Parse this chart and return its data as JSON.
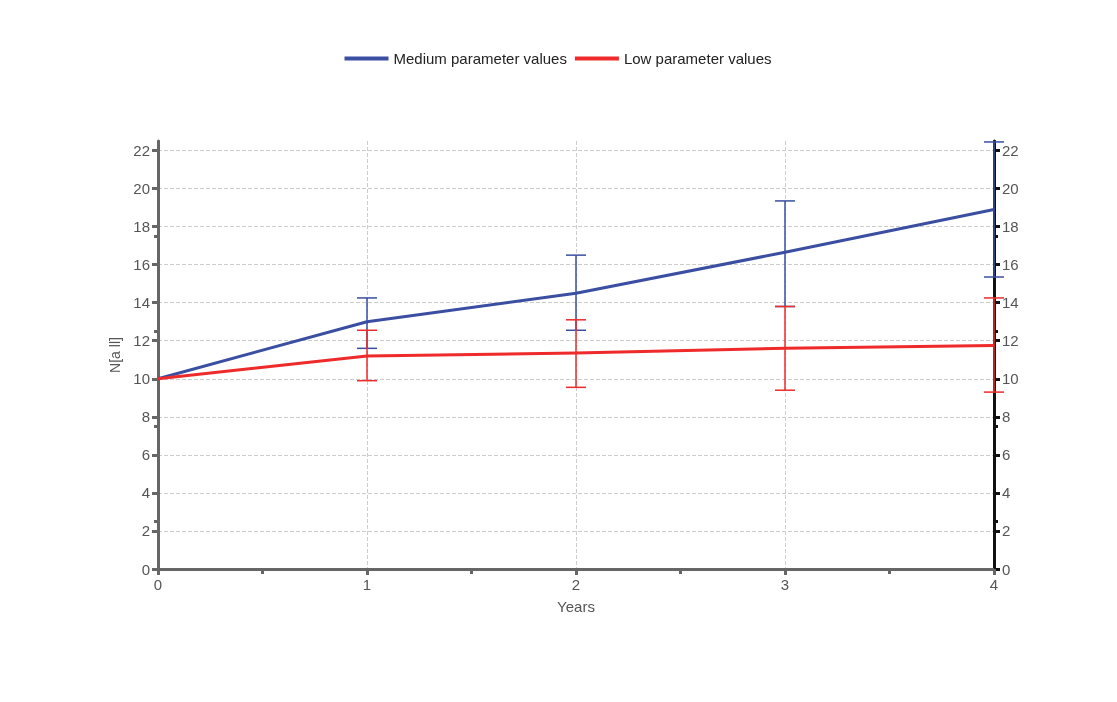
{
  "chart_data": {
    "type": "line",
    "xlabel": "Years",
    "ylabel": "N[a ll]",
    "x": [
      0,
      1,
      2,
      3,
      4
    ],
    "series": [
      {
        "name": "Medium parameter values",
        "color": "#3a4ea2",
        "values": [
          10,
          13.0,
          14.5,
          16.65,
          18.9
        ],
        "errors": [
          null,
          [
            11.6,
            14.25
          ],
          [
            12.55,
            16.5
          ],
          [
            13.8,
            19.35
          ],
          [
            15.35,
            22.45
          ]
        ]
      },
      {
        "name": "Low parameter values",
        "color": "#ee2a2a",
        "values": [
          10,
          11.2,
          11.35,
          11.6,
          11.75
        ],
        "errors": [
          null,
          [
            9.9,
            12.55
          ],
          [
            9.55,
            13.1
          ],
          [
            9.4,
            13.8
          ],
          [
            9.3,
            14.25
          ]
        ]
      }
    ],
    "xlim": [
      0,
      4
    ],
    "xticks": [
      0,
      1,
      2,
      3,
      4
    ],
    "ylim": [
      0,
      22.5
    ],
    "yticks": [
      0,
      2,
      4,
      6,
      8,
      10,
      12,
      14,
      16,
      18,
      20,
      22
    ],
    "y2lim": [
      0,
      22.5
    ],
    "y2ticks": [
      0,
      2,
      4,
      6,
      8,
      10,
      12,
      14,
      16,
      18,
      20,
      22
    ],
    "grid": true,
    "legend": "top",
    "marker": "none",
    "line_style": "solid"
  }
}
